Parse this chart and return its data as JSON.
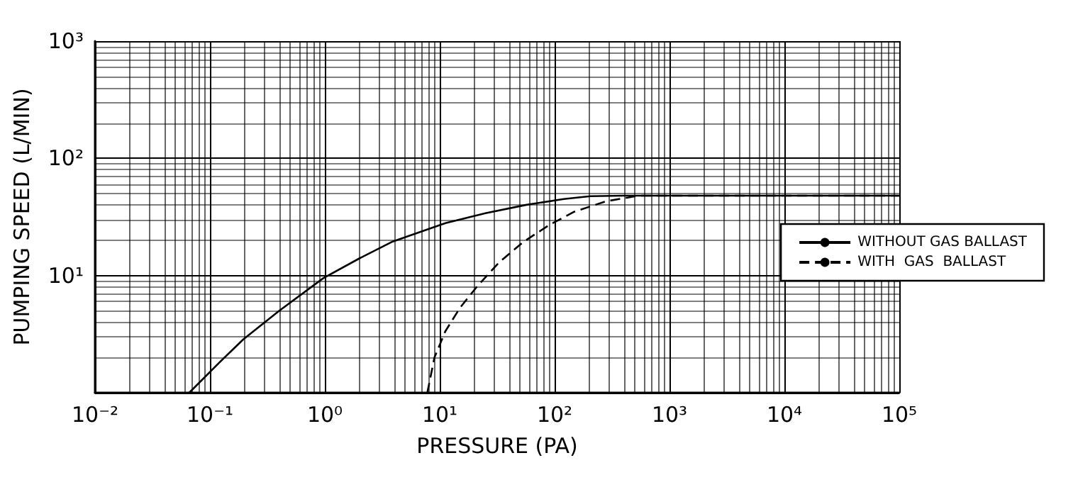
{
  "chart_data": {
    "type": "line",
    "xlabel": "PRESSURE (PA)",
    "ylabel": "PUMPING SPEED (L/MIN)",
    "log": "xy",
    "xlim": [
      0.01,
      100000
    ],
    "ylim": [
      1,
      1000
    ],
    "xticks": [
      {
        "value": 0.01,
        "label": "10⁻²"
      },
      {
        "value": 0.1,
        "label": "10⁻¹"
      },
      {
        "value": 1,
        "label": "10⁰"
      },
      {
        "value": 10,
        "label": "10¹"
      },
      {
        "value": 100,
        "label": "10²"
      },
      {
        "value": 1000,
        "label": "10³"
      },
      {
        "value": 10000,
        "label": "10⁴"
      },
      {
        "value": 100000,
        "label": "10⁵"
      }
    ],
    "yticks": [
      {
        "value": 1,
        "label": null
      },
      {
        "value": 10,
        "label": "10¹"
      },
      {
        "value": 100,
        "label": "10²"
      },
      {
        "value": 1000,
        "label": "10³"
      }
    ],
    "grid": true,
    "legend": "right",
    "marker": "none",
    "series": [
      {
        "name": "WITHOUT GAS BALLAST",
        "color": "#000000",
        "line_style": "solid",
        "x": [
          0.066,
          0.12,
          0.195,
          0.4,
          0.97,
          2,
          3.9,
          11.2,
          25,
          56,
          120,
          204,
          400,
          600,
          100000
        ],
        "values": [
          1,
          1.8,
          2.85,
          5,
          9.5,
          14,
          19.5,
          28,
          34,
          40,
          45,
          47.5,
          48,
          48,
          48
        ]
      },
      {
        "name": "WITH  GAS  BALLAST",
        "color": "#000000",
        "line_style": "dashed",
        "x": [
          7.8,
          9,
          11.2,
          15,
          21,
          33,
          54,
          90,
          148,
          280,
          540,
          100000
        ],
        "values": [
          1,
          2,
          3.35,
          5.3,
          8,
          13,
          19.5,
          27,
          35,
          43,
          48,
          48
        ]
      }
    ]
  }
}
